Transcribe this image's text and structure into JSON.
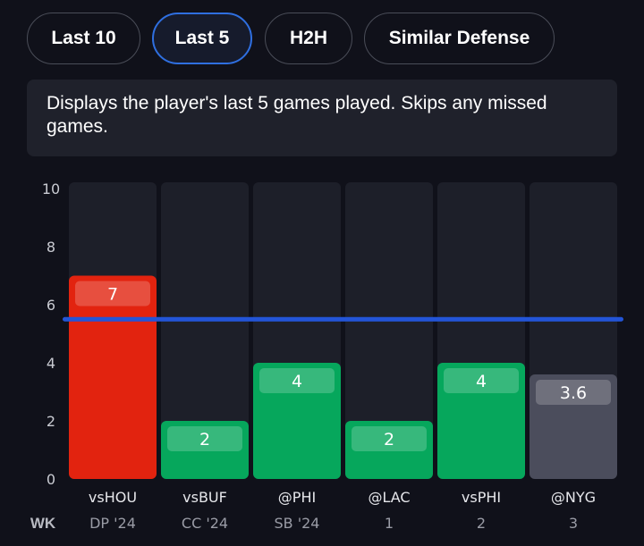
{
  "tabs": [
    {
      "label": "Last 10",
      "active": false
    },
    {
      "label": "Last 5",
      "active": true
    },
    {
      "label": "H2H",
      "active": false
    },
    {
      "label": "Similar Defense",
      "active": false
    }
  ],
  "description": "Displays the player's last 5 games played. Skips any missed games.",
  "colors": {
    "over": "#e2230f",
    "under": "#06a75c",
    "upcoming": "#4b4d5c",
    "line": "#2355d8",
    "track": "#1d1f29"
  },
  "chart_data": {
    "type": "bar",
    "ylim": [
      0,
      10
    ],
    "yticks": [
      "0",
      "2",
      "4",
      "6",
      "8",
      "10"
    ],
    "threshold": 5.5,
    "wk_header": "WK",
    "categories": [
      "vsHOU",
      "vsBUF",
      "@PHI",
      "@LAC",
      "vsPHI",
      "@NYG"
    ],
    "weeks": [
      "DP '24",
      "CC '24",
      "SB '24",
      "1",
      "2",
      "3"
    ],
    "values": [
      7,
      2,
      4,
      2,
      4,
      3.6
    ],
    "value_labels": [
      "7",
      "2",
      "4",
      "2",
      "4",
      "3.6"
    ],
    "status": [
      "over",
      "under",
      "under",
      "under",
      "under",
      "upcoming"
    ]
  }
}
